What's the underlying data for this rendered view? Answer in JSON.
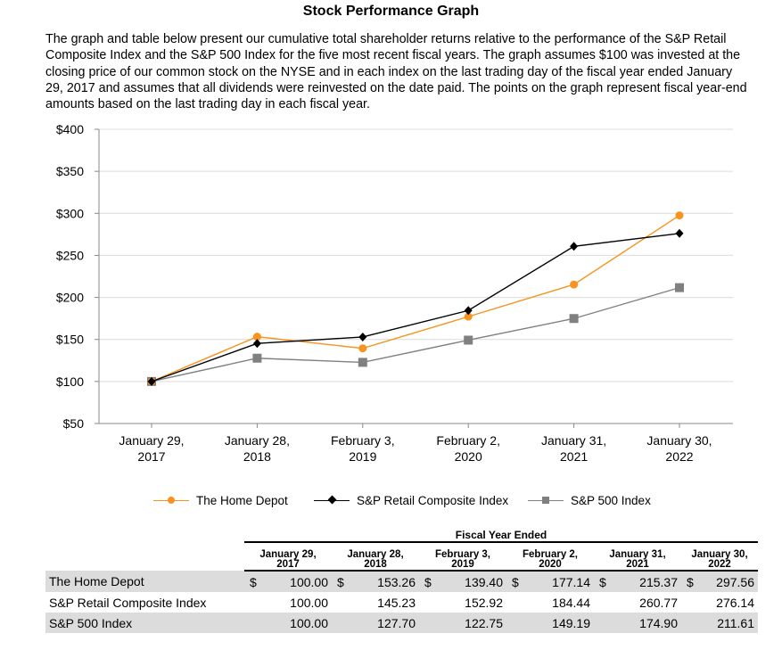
{
  "page": {
    "title": "Stock Performance Graph",
    "intro": "The graph and table below present our cumulative total shareholder returns relative to the performance of the S&P Retail Composite Index and the S&P 500 Index for the five most recent fiscal years. The graph assumes $100 was invested at the closing price of our common stock on the NYSE and in each index on the last trading day of the fiscal year ended January 29, 2017 and assumes that all dividends were reinvested on the date paid. The points on the graph represent fiscal year-end amounts based on the last trading day in each fiscal year."
  },
  "chart_data": {
    "type": "line",
    "title": "",
    "xlabel": "",
    "ylabel": "",
    "categories": [
      [
        "January 29,",
        "2017"
      ],
      [
        "January 28,",
        "2018"
      ],
      [
        "February 3,",
        "2019"
      ],
      [
        "February 2,",
        "2020"
      ],
      [
        "January 31,",
        "2021"
      ],
      [
        "January 30,",
        "2022"
      ]
    ],
    "ylim": [
      50,
      400
    ],
    "yticks": [
      50,
      100,
      150,
      200,
      250,
      300,
      350,
      400
    ],
    "ytick_labels": [
      "$50",
      "$100",
      "$150",
      "$200",
      "$250",
      "$300",
      "$350",
      "$400"
    ],
    "grid": true,
    "legend_position": "bottom",
    "series": [
      {
        "name": "The Home Depot",
        "values": [
          100.0,
          153.26,
          139.4,
          177.14,
          215.37,
          297.56
        ],
        "color": "#f7931e",
        "marker": "circle"
      },
      {
        "name": "S&P Retail Composite Index",
        "values": [
          100.0,
          145.23,
          152.92,
          184.44,
          260.77,
          276.14
        ],
        "color": "#000000",
        "marker": "diamond"
      },
      {
        "name": "S&P 500 Index",
        "values": [
          100.0,
          127.7,
          122.75,
          149.19,
          174.9,
          211.61
        ],
        "color": "#808080",
        "marker": "square"
      }
    ]
  },
  "table": {
    "group_header": "Fiscal Year Ended",
    "columns": [
      [
        "January 29,",
        "2017"
      ],
      [
        "January 28,",
        "2018"
      ],
      [
        "February 3,",
        "2019"
      ],
      [
        "February 2,",
        "2020"
      ],
      [
        "January 31,",
        "2021"
      ],
      [
        "January 30,",
        "2022"
      ]
    ],
    "currency_symbol": "$",
    "rows": [
      {
        "label": "The Home Depot",
        "values": [
          "100.00",
          "153.26",
          "139.40",
          "177.14",
          "215.37",
          "297.56"
        ],
        "show_currency": true,
        "shaded": true
      },
      {
        "label": "S&P Retail Composite Index",
        "values": [
          "100.00",
          "145.23",
          "152.92",
          "184.44",
          "260.77",
          "276.14"
        ],
        "show_currency": false,
        "shaded": false
      },
      {
        "label": "S&P 500 Index",
        "values": [
          "100.00",
          "127.70",
          "122.75",
          "149.19",
          "174.90",
          "211.61"
        ],
        "show_currency": false,
        "shaded": true
      }
    ]
  }
}
